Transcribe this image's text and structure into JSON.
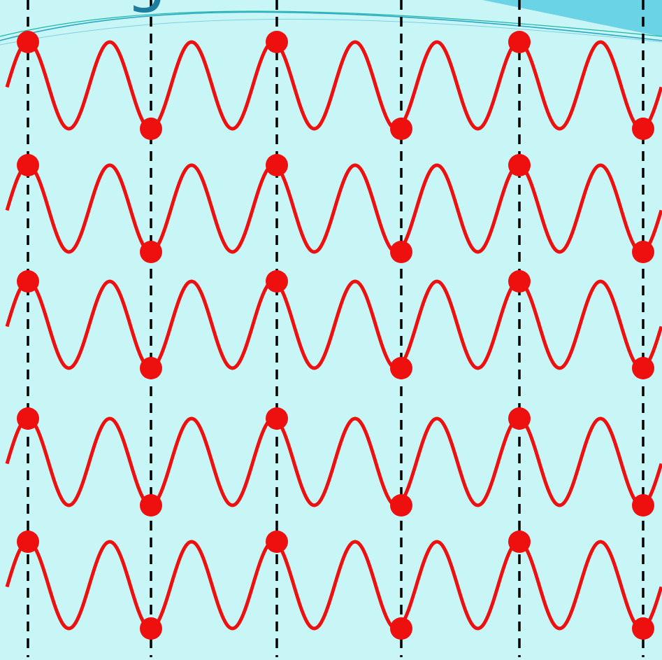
{
  "slide": {
    "title_fragment": "g",
    "colors": {
      "background": "#c8f6f7",
      "banner": "#6ad3e5",
      "banner_line_1": "#2aa7c6",
      "banner_line_2": "#1bb6a4",
      "wave": "#ee0f0f",
      "dot": "#ee0f0f",
      "guide": "#000000",
      "title": "#1d7ea0"
    }
  },
  "diagram": {
    "wave_count": 5,
    "dots_per_wave": 6,
    "guide_line_count": 6,
    "guide_style": "dashed",
    "dot_pattern": [
      "crest",
      "trough",
      "crest",
      "trough",
      "crest",
      "trough"
    ]
  }
}
